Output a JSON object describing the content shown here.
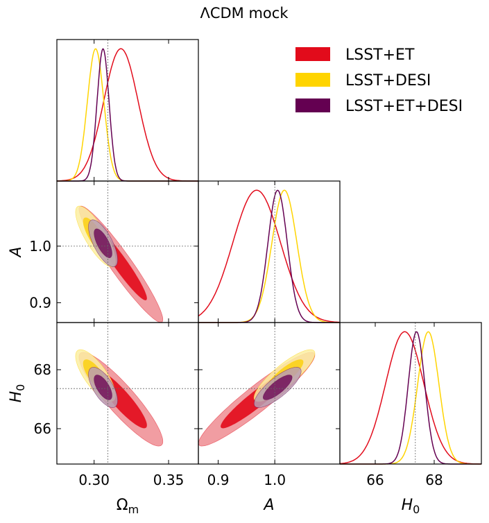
{
  "chart_data": {
    "type": "corner",
    "title": "ΛCDM mock",
    "parameters": [
      {
        "key": "Om",
        "label": "Ω",
        "label_sub": "m",
        "label_italic": false,
        "range": [
          0.275,
          0.37
        ],
        "ticks": [
          0.3,
          0.35
        ],
        "tick_labels": [
          "0.30",
          "0.35"
        ],
        "fiducial": 0.3092
      },
      {
        "key": "A",
        "label": "A",
        "label_sub": "",
        "label_italic": true,
        "range": [
          0.865,
          1.115
        ],
        "ticks": [
          0.9,
          1.0
        ],
        "tick_labels": [
          "0.9",
          "1.0"
        ],
        "fiducial": 1.0
      },
      {
        "key": "H0",
        "label": "H",
        "label_sub": "0",
        "label_italic": true,
        "range": [
          64.8,
          69.6
        ],
        "ticks": [
          66,
          68
        ],
        "tick_labels": [
          "66",
          "68"
        ],
        "fiducial": 67.36
      }
    ],
    "legend_position": "top-right",
    "series": [
      {
        "name": "LSST+ET",
        "color": "#e20b1b",
        "inner_color": "#e20b1b",
        "outer_color": "#ee8c92",
        "means": {
          "Om": 0.318,
          "A": 0.968,
          "H0": 67.0
        },
        "sigmas": {
          "Om": 0.0115,
          "A": 0.042,
          "H0": 0.65
        },
        "correlations": {
          "Om_A": -0.95,
          "Om_H0": -0.9,
          "A_H0": 0.94
        }
      },
      {
        "name": "LSST+DESI",
        "color": "#ffd400",
        "inner_color": "#fbd21a",
        "outer_color": "#fcefa2",
        "means": {
          "Om": 0.301,
          "A": 1.017,
          "H0": 67.8
        },
        "sigmas": {
          "Om": 0.0055,
          "A": 0.022,
          "H0": 0.36
        },
        "correlations": {
          "Om_A": -0.8,
          "Om_H0": -0.75,
          "A_H0": 0.85
        }
      },
      {
        "name": "LSST+ET+DESI",
        "color": "#640051",
        "inner_color": "#761a5e",
        "outer_color": "#b99db1",
        "means": {
          "Om": 0.306,
          "A": 1.005,
          "H0": 67.4
        },
        "sigmas": {
          "Om": 0.004,
          "A": 0.017,
          "H0": 0.28
        },
        "correlations": {
          "Om_A": -0.7,
          "Om_H0": -0.65,
          "A_H0": 0.8
        }
      }
    ]
  }
}
